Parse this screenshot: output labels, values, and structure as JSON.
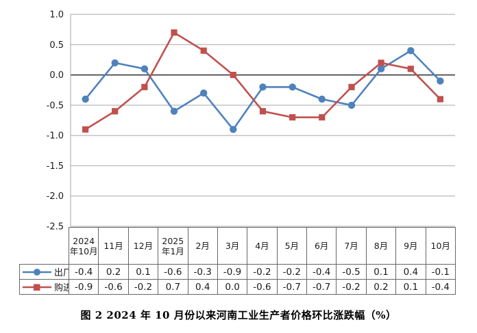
{
  "caption": "图 2  2024 年 10 月份以来河南工业生产者价格环比涨跌幅（%）",
  "colors": {
    "factory_series": "#4F81BD",
    "purchase_series": "#C0504D",
    "grid_line": "#A6A6A6",
    "zero_line": "#2b2b2b",
    "axis_text": "#1a1a1a",
    "table_border": "#666666"
  },
  "chart_data": {
    "type": "line",
    "title": "",
    "xlabel": "",
    "ylabel": "",
    "grid": true,
    "legend_position": "table-left",
    "ylim": [
      -2.5,
      1.0
    ],
    "ytick_step": 0.5,
    "yticks": [
      "1.0",
      "0.5",
      "0.0",
      "-0.5",
      "-1.0",
      "-1.5",
      "-2.0",
      "-2.5"
    ],
    "categories": [
      "2024年10月",
      "11月",
      "12月",
      "2025年1月",
      "2月",
      "3月",
      "4月",
      "5月",
      "6月",
      "7月",
      "8月",
      "9月",
      "10月"
    ],
    "series": [
      {
        "name": "出厂",
        "marker": "circle",
        "color": "#4F81BD",
        "values": [
          -0.4,
          0.2,
          0.1,
          -0.6,
          -0.3,
          -0.9,
          -0.2,
          -0.2,
          -0.4,
          -0.5,
          0.1,
          0.4,
          -0.1
        ]
      },
      {
        "name": "购进",
        "marker": "square",
        "color": "#C0504D",
        "values": [
          -0.9,
          -0.6,
          -0.2,
          0.7,
          0.4,
          0.0,
          -0.6,
          -0.7,
          -0.7,
          -0.2,
          0.2,
          0.1,
          -0.4
        ]
      }
    ]
  }
}
